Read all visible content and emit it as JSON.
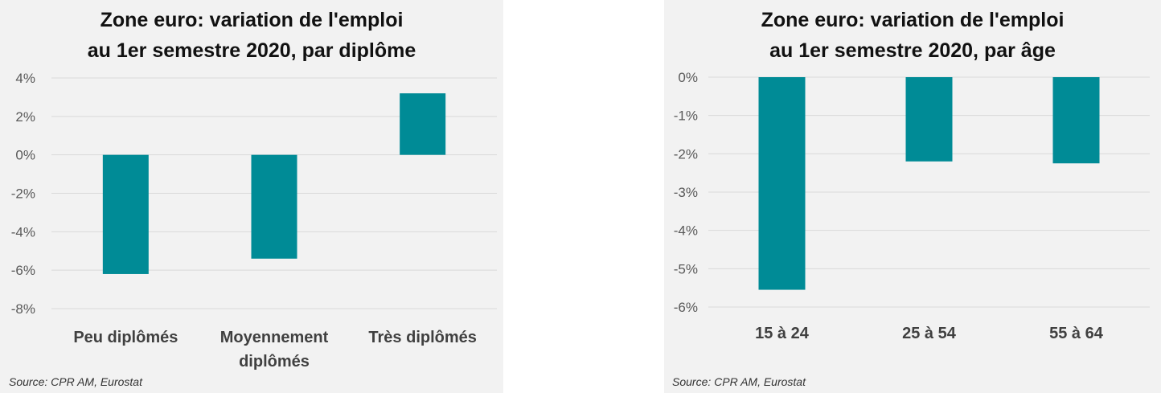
{
  "panels": [
    {
      "title_line1": "Zone euro: variation de l'emploi",
      "title_line2": "au 1er semestre 2020, par diplôme",
      "source": "Source: CPR AM, Eurostat",
      "chart_data": {
        "type": "bar",
        "title": "Zone euro: variation de l'emploi au 1er semestre 2020, par diplôme",
        "categories": [
          [
            "Peu diplômés"
          ],
          [
            "Moyennement",
            "diplômés"
          ],
          [
            "Très diplômés"
          ]
        ],
        "values": [
          -6.2,
          -5.4,
          3.2
        ],
        "yticks": [
          "4%",
          "2%",
          "0%",
          "-2%",
          "-4%",
          "-6%",
          "-8%"
        ],
        "ylim": [
          -8,
          4
        ],
        "grid": true,
        "bar_color": "#008b96"
      }
    },
    {
      "title_line1": "Zone euro: variation de l'emploi",
      "title_line2": "au 1er semestre 2020, par âge",
      "source": "Source: CPR AM, Eurostat",
      "chart_data": {
        "type": "bar",
        "title": "Zone euro: variation de l'emploi au 1er semestre 2020, par âge",
        "categories": [
          [
            "15 à 24"
          ],
          [
            "25 à 54"
          ],
          [
            "55 à 64"
          ]
        ],
        "values": [
          -5.55,
          -2.2,
          -2.25
        ],
        "yticks": [
          "0%",
          "-1%",
          "-2%",
          "-3%",
          "-4%",
          "-5%",
          "-6%"
        ],
        "ylim": [
          -6,
          0
        ],
        "grid": true,
        "bar_color": "#008b96"
      }
    }
  ]
}
